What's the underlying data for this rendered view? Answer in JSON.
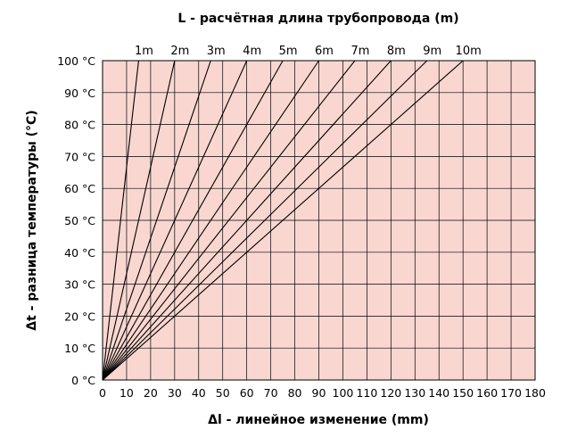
{
  "chart_data": {
    "type": "line",
    "title": "L - расчётная длина трубопровода (m)",
    "xlabel": "Δl - линейное изменение (mm)",
    "ylabel": "Δt - разница температуры (°C)",
    "xlim": [
      0,
      180
    ],
    "ylim": [
      0,
      100
    ],
    "grid": true,
    "background_color": "#f9d7d0",
    "line_color": "#000000",
    "x_ticks": [
      "0",
      "10",
      "20",
      "30",
      "40",
      "50",
      "60",
      "70",
      "80",
      "90",
      "100",
      "110",
      "120",
      "130",
      "140",
      "150",
      "160",
      "170",
      "180"
    ],
    "y_ticks": [
      "0 °C",
      "10 °C",
      "20 °C",
      "30 °C",
      "40 °C",
      "50 °C",
      "60 °C",
      "70 °C",
      "80 °C",
      "90 °C",
      "100 °C"
    ],
    "series": [
      {
        "name": "1m",
        "x": [
          0,
          15
        ],
        "y": [
          0,
          100
        ]
      },
      {
        "name": "2m",
        "x": [
          0,
          30
        ],
        "y": [
          0,
          100
        ]
      },
      {
        "name": "3m",
        "x": [
          0,
          45
        ],
        "y": [
          0,
          100
        ]
      },
      {
        "name": "4m",
        "x": [
          0,
          60
        ],
        "y": [
          0,
          100
        ]
      },
      {
        "name": "5m",
        "x": [
          0,
          75
        ],
        "y": [
          0,
          100
        ]
      },
      {
        "name": "6m",
        "x": [
          0,
          90
        ],
        "y": [
          0,
          100
        ]
      },
      {
        "name": "7m",
        "x": [
          0,
          105
        ],
        "y": [
          0,
          100
        ]
      },
      {
        "name": "8m",
        "x": [
          0,
          120
        ],
        "y": [
          0,
          100
        ]
      },
      {
        "name": "9m",
        "x": [
          0,
          135
        ],
        "y": [
          0,
          100
        ]
      },
      {
        "name": "10m",
        "x": [
          0,
          150
        ],
        "y": [
          0,
          100
        ]
      }
    ]
  }
}
